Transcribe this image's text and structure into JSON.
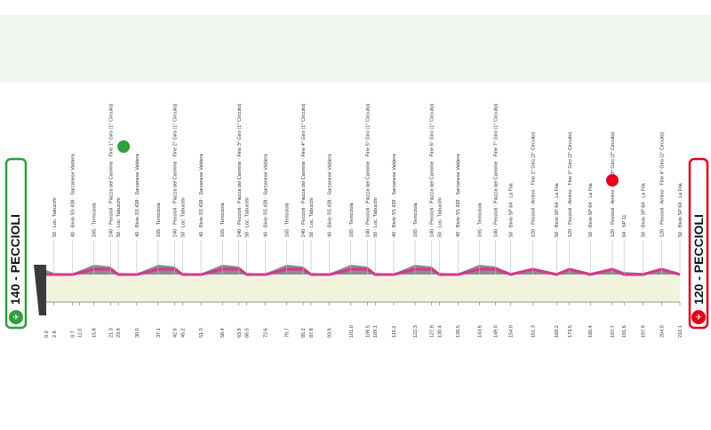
{
  "start_badge": {
    "label": "140 - PECCIOLI",
    "color": "#2e9e3e"
  },
  "finish_badge": {
    "label": "120 - PECCIOLI",
    "color": "#e2001a"
  },
  "colors": {
    "road": "#d6358f",
    "terrain": "#8c8c8c",
    "fill": "#f1f3dc",
    "sprint": "#2e9e3e",
    "kom": "#e2001a"
  },
  "chart_data": {
    "type": "area",
    "title": "",
    "xlabel": "",
    "ylabel": "",
    "xlim": [
      0,
      210.1
    ],
    "km_labels": [
      {
        "km": 0.0,
        "text": "0.0"
      },
      {
        "km": 2.6,
        "text": "2.6"
      },
      {
        "km": 8.7,
        "text": "8.7"
      },
      {
        "km": 11.0,
        "text": "11.0"
      },
      {
        "km": 15.8,
        "text": "15.8"
      },
      {
        "km": 21.3,
        "text": "21.3"
      },
      {
        "km": 23.9,
        "text": "23.9"
      },
      {
        "km": 30.0,
        "text": "30.0"
      },
      {
        "km": 37.1,
        "text": "37.1"
      },
      {
        "km": 42.6,
        "text": "42.6"
      },
      {
        "km": 45.2,
        "text": "45.2"
      },
      {
        "km": 51.3,
        "text": "51.3"
      },
      {
        "km": 58.4,
        "text": "58.4"
      },
      {
        "km": 63.9,
        "text": "63.9"
      },
      {
        "km": 66.5,
        "text": "66.5"
      },
      {
        "km": 72.6,
        "text": "72.6"
      },
      {
        "km": 79.7,
        "text": "79.7"
      },
      {
        "km": 85.2,
        "text": "85.2"
      },
      {
        "km": 87.8,
        "text": "87.8"
      },
      {
        "km": 93.9,
        "text": "93.9"
      },
      {
        "km": 101.0,
        "text": "101.0"
      },
      {
        "km": 106.5,
        "text": "106.5"
      },
      {
        "km": 109.1,
        "text": "109.1"
      },
      {
        "km": 115.2,
        "text": "115.2"
      },
      {
        "km": 122.3,
        "text": "122.3"
      },
      {
        "km": 127.8,
        "text": "127.8"
      },
      {
        "km": 130.4,
        "text": "130.4"
      },
      {
        "km": 136.5,
        "text": "136.5"
      },
      {
        "km": 143.6,
        "text": "143.6"
      },
      {
        "km": 149.0,
        "text": "149.0"
      },
      {
        "km": 154.0,
        "text": "154.0"
      },
      {
        "km": 161.3,
        "text": "161.3"
      },
      {
        "km": 169.2,
        "text": "169.2"
      },
      {
        "km": 173.5,
        "text": "173.5"
      },
      {
        "km": 180.4,
        "text": "180.4"
      },
      {
        "km": 187.7,
        "text": "187.7"
      },
      {
        "km": 191.6,
        "text": "191.6"
      },
      {
        "km": 197.9,
        "text": "197.9"
      },
      {
        "km": 204.0,
        "text": "204.0"
      },
      {
        "km": 210.1,
        "text": "210.1"
      }
    ],
    "locations": [
      {
        "km": 2.6,
        "text": "50 · Loc. Tabucchi"
      },
      {
        "km": 8.7,
        "text": "40 · Bivio SS 439 · Sarzanese Valdera"
      },
      {
        "km": 15.8,
        "text": "165 · Terricciola"
      },
      {
        "km": 21.3,
        "text": "140 · Peccioli · Piazza del Carmine · Fine 1° Giro (1° Circuito)"
      },
      {
        "km": 23.9,
        "text": "50 · Loc. Tabucchi"
      },
      {
        "km": 30.0,
        "text": "40 · Bivio SS 439 · Sarzanese Valdera"
      },
      {
        "km": 37.1,
        "text": "165 · Terricciola"
      },
      {
        "km": 42.6,
        "text": "140 · Peccioli · Piazza del Carmine · Fine 2° Giro (1° Circuito)"
      },
      {
        "km": 45.2,
        "text": "50 · Loc. Tabucchi"
      },
      {
        "km": 51.3,
        "text": "40 · Bivio SS 439 · Sarzanese Valdera"
      },
      {
        "km": 58.4,
        "text": "165 · Terricciola"
      },
      {
        "km": 63.9,
        "text": "140 · Peccioli · Piazza del Carmine · Fine 3° Giro (1° Circuito)"
      },
      {
        "km": 66.5,
        "text": "50 · Loc. Tabucchi"
      },
      {
        "km": 72.6,
        "text": "40 · Bivio SS 439 · Sarzanese Valdera"
      },
      {
        "km": 79.7,
        "text": "165 · Terricciola"
      },
      {
        "km": 85.2,
        "text": "140 · Peccioli · Piazza del Carmine · Fine 4° Giro (1° Circuito)"
      },
      {
        "km": 87.8,
        "text": "50 · Loc. Tabucchi"
      },
      {
        "km": 93.9,
        "text": "40 · Bivio SS 439 · Sarzanese Valdera"
      },
      {
        "km": 101.0,
        "text": "165 · Terricciola"
      },
      {
        "km": 106.5,
        "text": "140 · Peccioli · Piazza del Carmine · Fine 5° Giro (1° Circuito)"
      },
      {
        "km": 109.1,
        "text": "50 · Loc. Tabucchi"
      },
      {
        "km": 115.2,
        "text": "40 · Bivio SS 439 · Sarzanese Valdera"
      },
      {
        "km": 122.3,
        "text": "165 · Terricciola"
      },
      {
        "km": 127.8,
        "text": "140 · Peccioli · Piazza del Carmine · Fine 6° Giro (1° Circuito)"
      },
      {
        "km": 130.4,
        "text": "50 · Loc. Tabucchi"
      },
      {
        "km": 136.5,
        "text": "40 · Bivio SS 439 · Sarzanese Valdera"
      },
      {
        "km": 143.6,
        "text": "165 · Terricciola"
      },
      {
        "km": 149.0,
        "text": "140 · Peccioli · Piazza del Carmine · Fine 7° Giro (1° Circuito)"
      },
      {
        "km": 154.0,
        "text": "50 · Bivio SP 64 · La Fila"
      },
      {
        "km": 161.3,
        "text": "120 · Peccioli · Arnino · Fine 1° Giro (2° Circuito)"
      },
      {
        "km": 169.2,
        "text": "50 · Bivio SP 64 · La Fila"
      },
      {
        "km": 173.5,
        "text": "120 · Peccioli · Arnino · Fine 2° Giro (2° Circuito)"
      },
      {
        "km": 180.4,
        "text": "50 · Bivio SP 64 · La Fila"
      },
      {
        "km": 187.7,
        "text": "120 · Peccioli · Arnino · Fine 3° Giro (2° Circuito)"
      },
      {
        "km": 191.6,
        "text": "64 · SP 11"
      },
      {
        "km": 197.9,
        "text": "50 · Bivio SP 64 · La Fila"
      },
      {
        "km": 204.0,
        "text": "120 · Peccioli · Arnino · Fine 4° Giro (2° Circuito)"
      },
      {
        "km": 210.1,
        "text": "50 · Bivio SP 64 · La Fila"
      }
    ],
    "sprint_km": 23.9,
    "kom_km": 187.7
  }
}
